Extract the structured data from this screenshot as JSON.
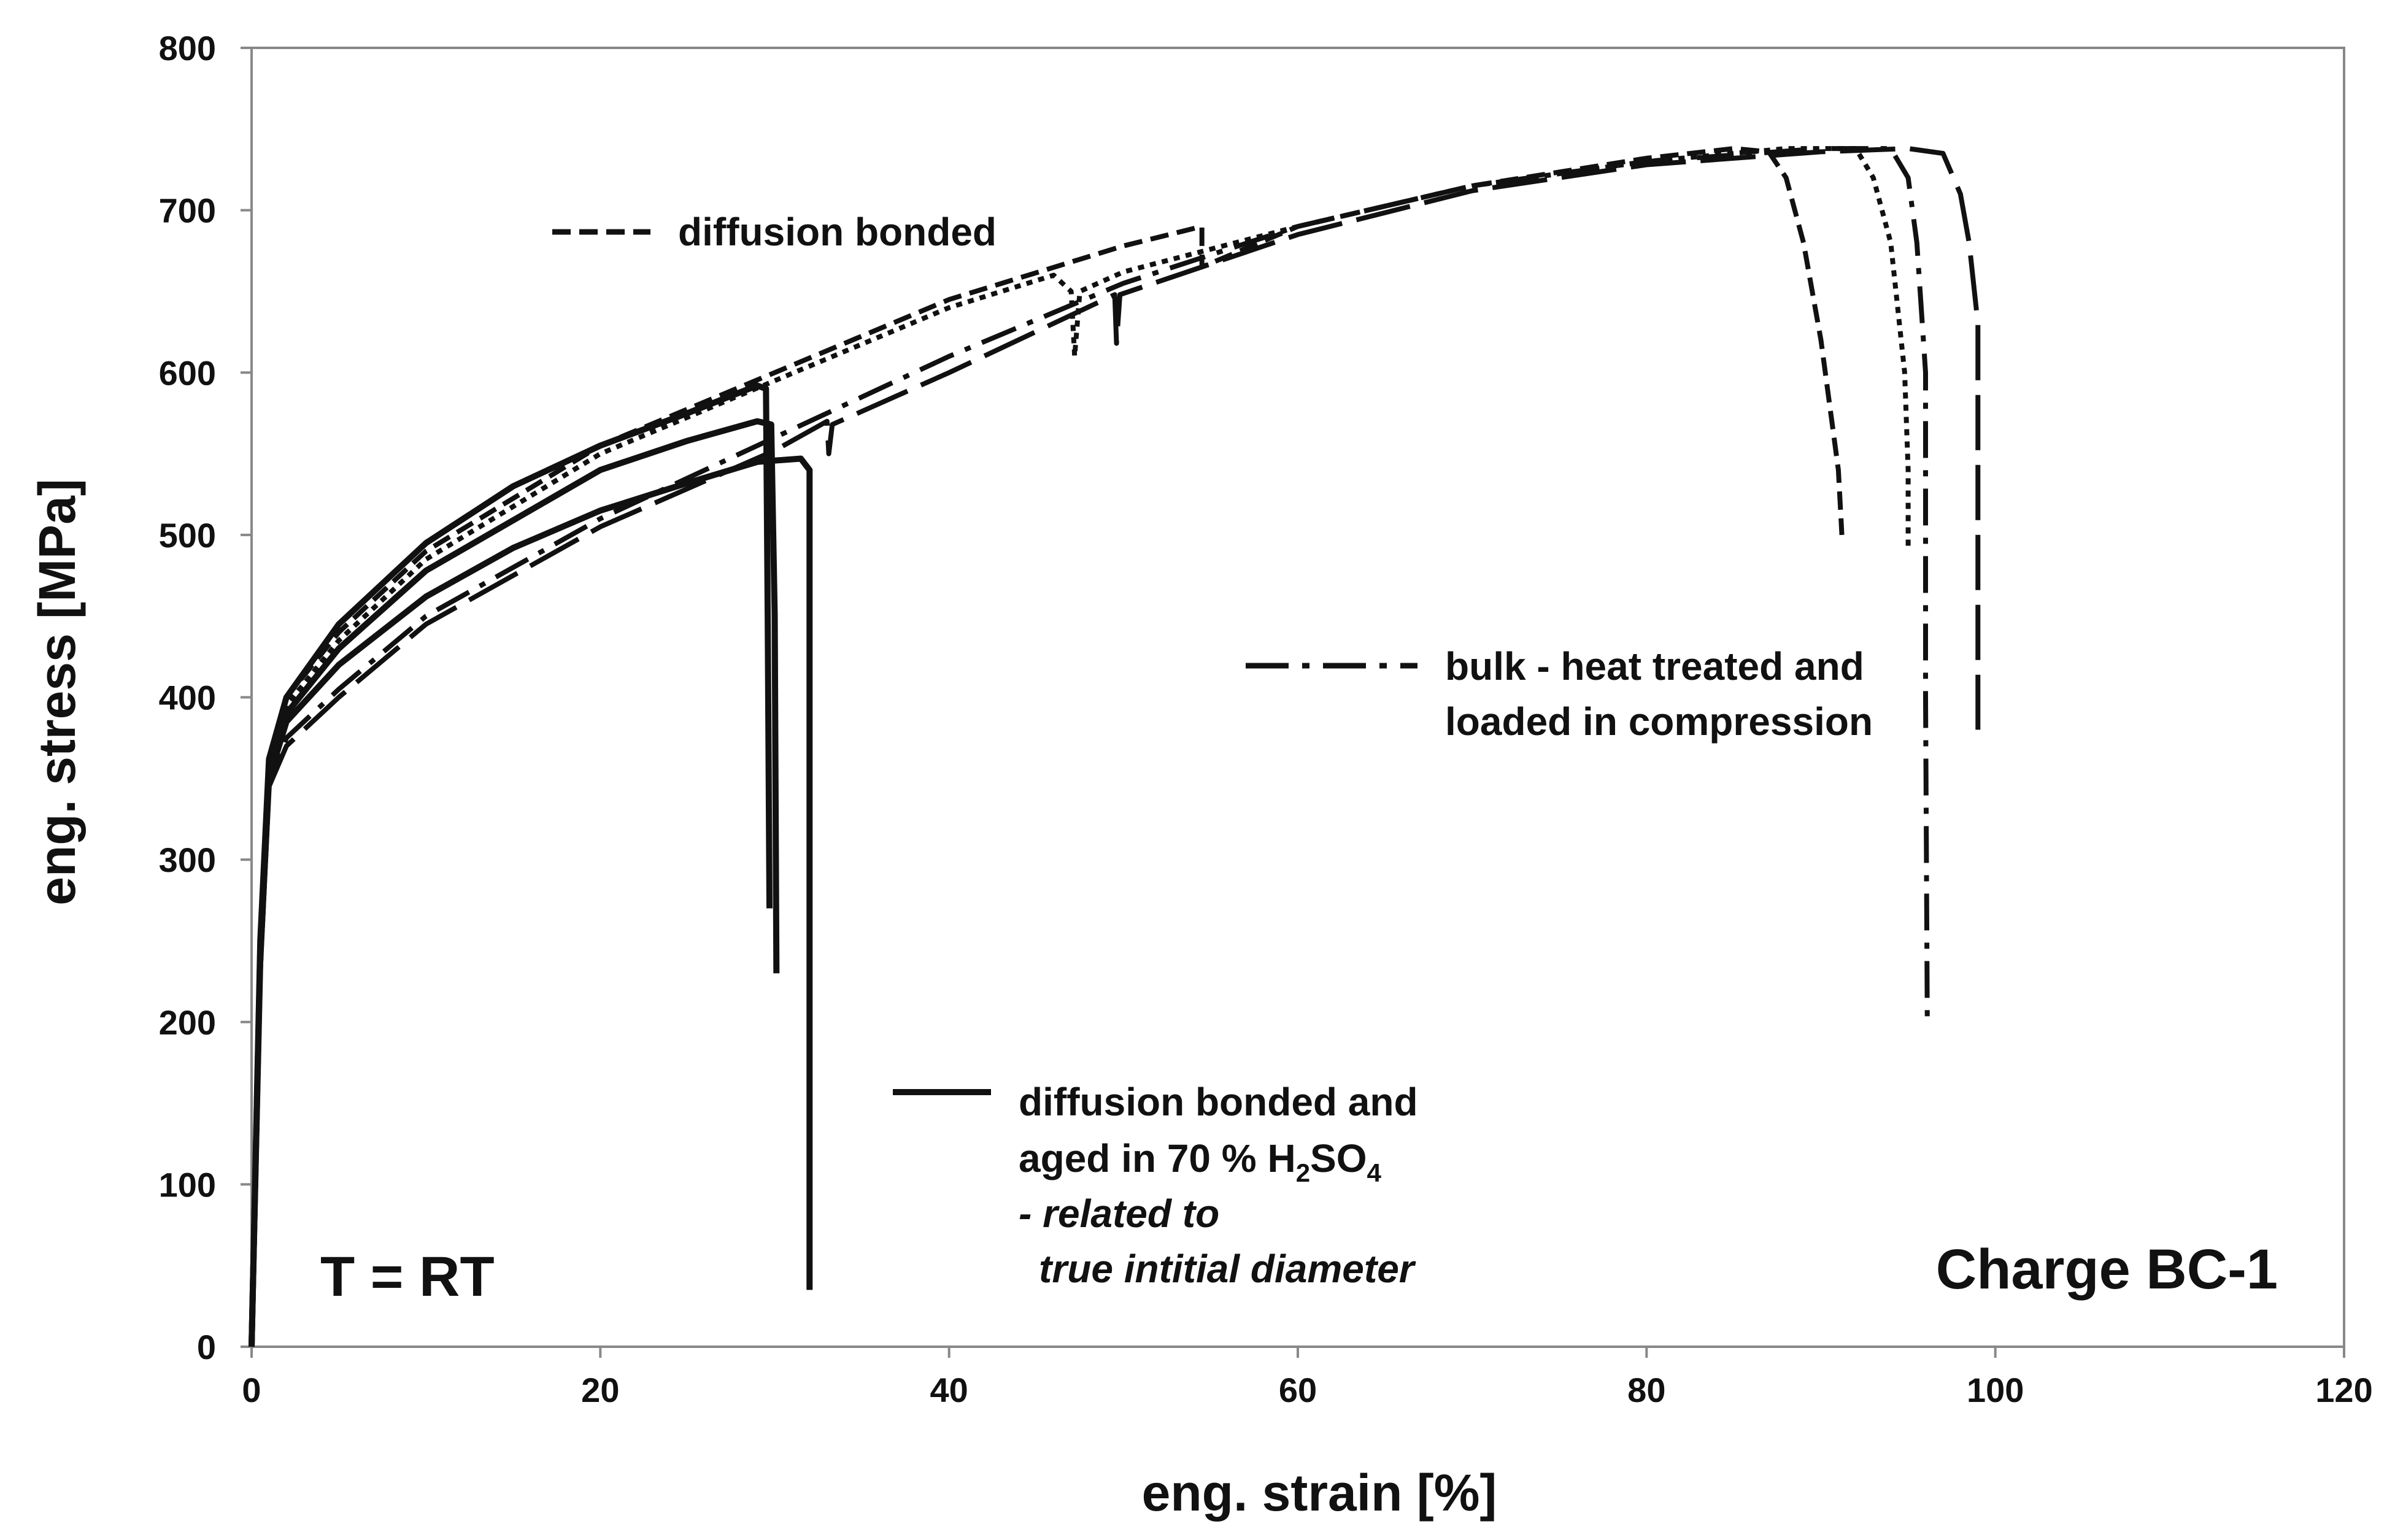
{
  "chart_data": {
    "type": "line",
    "xlabel": "eng. strain [%]",
    "ylabel": "eng. stress [MPa]",
    "xlim": [
      0,
      120
    ],
    "ylim": [
      0,
      800
    ],
    "xticks": [
      "0",
      "20",
      "40",
      "60",
      "80",
      "100",
      "120"
    ],
    "yticks": [
      "0",
      "100",
      "200",
      "300",
      "400",
      "500",
      "600",
      "700",
      "800"
    ],
    "grid": false,
    "annotations": {
      "temperature": "T = RT",
      "charge": "Charge BC-1"
    },
    "legend": {
      "dashed": "diffusion bonded",
      "dashdot_line1": "bulk - heat treated and",
      "dashdot_line2": "loaded in compression",
      "solid_line1": "diffusion bonded and",
      "solid_line2_prefix": "aged in 70 % H",
      "solid_sub1": "2",
      "solid_mid": "SO",
      "solid_sub2": "4",
      "solid_line3": "- related to",
      "solid_line4": "true intitial diameter"
    },
    "series": [
      {
        "name": "diffusion bonded (1)",
        "style": "dashed",
        "points": [
          [
            0,
            0
          ],
          [
            0.5,
            250
          ],
          [
            1,
            360
          ],
          [
            2,
            400
          ],
          [
            5,
            440
          ],
          [
            10,
            490
          ],
          [
            20,
            555
          ],
          [
            30,
            600
          ],
          [
            40,
            645
          ],
          [
            50,
            678
          ],
          [
            54.5,
            690
          ],
          [
            54.5,
            665
          ],
          [
            60,
            690
          ],
          [
            70,
            715
          ],
          [
            80,
            732
          ],
          [
            85,
            738
          ],
          [
            87,
            736
          ],
          [
            88,
            720
          ],
          [
            89,
            680
          ],
          [
            90,
            620
          ],
          [
            91,
            540
          ],
          [
            91.2,
            500
          ]
        ]
      },
      {
        "name": "diffusion bonded (2)",
        "style": "dotted",
        "points": [
          [
            0,
            0
          ],
          [
            0.5,
            240
          ],
          [
            1,
            355
          ],
          [
            2,
            395
          ],
          [
            5,
            435
          ],
          [
            10,
            485
          ],
          [
            20,
            550
          ],
          [
            30,
            595
          ],
          [
            40,
            640
          ],
          [
            46,
            660
          ],
          [
            47,
            650
          ],
          [
            47.2,
            610
          ],
          [
            47.5,
            650
          ],
          [
            50,
            662
          ],
          [
            60,
            690
          ],
          [
            70,
            715
          ],
          [
            80,
            730
          ],
          [
            88,
            738
          ],
          [
            92,
            738
          ],
          [
            93,
            720
          ],
          [
            94,
            680
          ],
          [
            94.8,
            600
          ],
          [
            95,
            540
          ],
          [
            95,
            490
          ]
        ]
      },
      {
        "name": "bulk - heat treated (1)",
        "style": "dashdot",
        "points": [
          [
            0,
            0
          ],
          [
            0.5,
            230
          ],
          [
            1,
            345
          ],
          [
            2,
            375
          ],
          [
            5,
            405
          ],
          [
            10,
            450
          ],
          [
            20,
            510
          ],
          [
            30,
            560
          ],
          [
            40,
            610
          ],
          [
            50,
            655
          ],
          [
            60,
            690
          ],
          [
            70,
            715
          ],
          [
            80,
            730
          ],
          [
            90,
            738
          ],
          [
            94,
            738
          ],
          [
            95,
            720
          ],
          [
            95.5,
            680
          ],
          [
            96,
            600
          ],
          [
            96,
            400
          ],
          [
            96.1,
            200
          ]
        ]
      },
      {
        "name": "bulk - heat treated (2)",
        "style": "longdash",
        "points": [
          [
            0,
            0
          ],
          [
            0.5,
            230
          ],
          [
            1,
            345
          ],
          [
            2,
            370
          ],
          [
            5,
            400
          ],
          [
            10,
            445
          ],
          [
            20,
            505
          ],
          [
            30,
            552
          ],
          [
            33,
            570
          ],
          [
            33.1,
            550
          ],
          [
            33.3,
            568
          ],
          [
            40,
            600
          ],
          [
            49.5,
            648
          ],
          [
            49.6,
            618
          ],
          [
            49.8,
            648
          ],
          [
            60,
            685
          ],
          [
            70,
            712
          ],
          [
            80,
            728
          ],
          [
            90,
            736
          ],
          [
            95,
            738
          ],
          [
            97,
            735
          ],
          [
            98,
            710
          ],
          [
            98.5,
            680
          ],
          [
            99,
            630
          ],
          [
            99,
            500
          ],
          [
            99,
            380
          ]
        ]
      },
      {
        "name": "diffusion bonded and aged (1)",
        "style": "solid",
        "points": [
          [
            0,
            0
          ],
          [
            0.5,
            250
          ],
          [
            1,
            362
          ],
          [
            2,
            400
          ],
          [
            5,
            445
          ],
          [
            10,
            495
          ],
          [
            15,
            530
          ],
          [
            20,
            555
          ],
          [
            25,
            575
          ],
          [
            29,
            592
          ],
          [
            29.5,
            590
          ],
          [
            29.6,
            450
          ],
          [
            29.7,
            270
          ]
        ]
      },
      {
        "name": "diffusion bonded and aged (2)",
        "style": "solid",
        "points": [
          [
            0,
            0
          ],
          [
            0.5,
            240
          ],
          [
            1,
            350
          ],
          [
            2,
            385
          ],
          [
            5,
            420
          ],
          [
            10,
            462
          ],
          [
            15,
            492
          ],
          [
            20,
            515
          ],
          [
            25,
            532
          ],
          [
            29,
            545
          ],
          [
            31.5,
            547
          ],
          [
            32,
            540
          ],
          [
            32,
            300
          ],
          [
            32,
            35
          ]
        ]
      },
      {
        "name": "diffusion bonded and aged (3)",
        "style": "solid",
        "points": [
          [
            0,
            0
          ],
          [
            0.5,
            245
          ],
          [
            1,
            355
          ],
          [
            2,
            390
          ],
          [
            5,
            430
          ],
          [
            10,
            478
          ],
          [
            20,
            540
          ],
          [
            25,
            558
          ],
          [
            29,
            570
          ],
          [
            29.8,
            568
          ],
          [
            30,
            450
          ],
          [
            30.1,
            230
          ]
        ]
      }
    ]
  }
}
